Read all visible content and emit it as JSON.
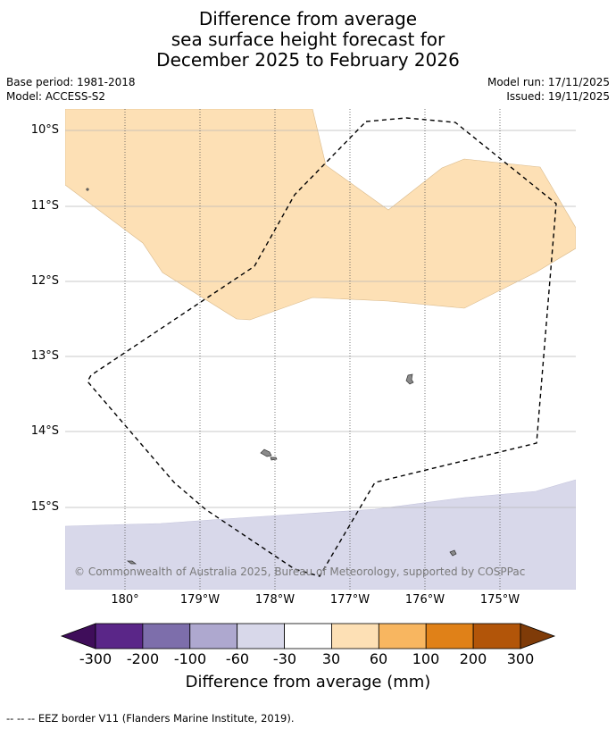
{
  "title": {
    "line1": "Difference from average",
    "line2": "sea surface height forecast for",
    "line3": "December 2025 to February 2026"
  },
  "meta": {
    "base_period": "Base period: 1981-2018",
    "model": "Model: ACCESS-S2",
    "model_run": "Model run: 17/11/2025",
    "issued": "Issued: 19/11/2025"
  },
  "map": {
    "lat_labels": [
      "10°S",
      "11°S",
      "12°S",
      "13°S",
      "14°S",
      "15°S"
    ],
    "lon_labels": [
      "180°",
      "179°W",
      "178°W",
      "177°W",
      "176°W",
      "175°W"
    ],
    "copyright": "© Commonwealth of Australia 2025, Bureau of Meteorology, supported by COSPPac",
    "colors": {
      "high_anomaly": "#fde0b5",
      "low_anomaly": "#d8d8ea",
      "land": "#8a8a8a",
      "grid": "#b8b8b8"
    }
  },
  "colorbar": {
    "labels": [
      "-300",
      "-200",
      "-100",
      "-60",
      "-30",
      "30",
      "60",
      "100",
      "200",
      "300"
    ],
    "colors": [
      "#3f0d5a",
      "#5a2688",
      "#7d6eab",
      "#aea8cf",
      "#d8d8ea",
      "#ffffff",
      "#fde0b5",
      "#f8b660",
      "#e08118",
      "#b25509",
      "#7f3b08"
    ],
    "title": "Difference from average (mm)"
  },
  "footnote": "--  --  -- EEZ border V11 (Flanders Marine Institute, 2019)."
}
